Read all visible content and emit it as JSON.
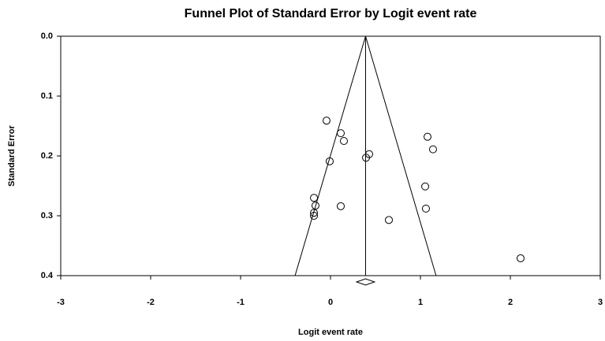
{
  "chart_data": {
    "type": "scatter",
    "title": "Funnel Plot of Standard Error by Logit event rate",
    "xlabel": "Logit event rate",
    "ylabel": "Standard Error",
    "x": [
      -0.044,
      0.114,
      0.149,
      -0.009,
      0.43,
      0.395,
      1.079,
      1.14,
      1.053,
      1.061,
      -0.184,
      -0.167,
      -0.184,
      -0.184,
      0.114,
      0.649,
      2.114
    ],
    "y": [
      0.141,
      0.162,
      0.175,
      0.209,
      0.197,
      0.203,
      0.168,
      0.189,
      0.251,
      0.288,
      0.27,
      0.283,
      0.295,
      0.3,
      0.284,
      0.307,
      0.371
    ],
    "xlim": [
      -3,
      3
    ],
    "xticks": [
      -3,
      -2,
      -1,
      0,
      1,
      2,
      3
    ],
    "ylim": [
      0,
      0.4
    ],
    "y_inverted": true,
    "yticks": [
      {
        "value": 0,
        "label": "0.0"
      },
      0.1,
      0.2,
      0.3,
      0.4
    ],
    "pooled_estimate": 0.39,
    "pooled_ci": [
      0.29,
      0.49
    ],
    "funnel_z": 1.96,
    "color": "#000000"
  }
}
